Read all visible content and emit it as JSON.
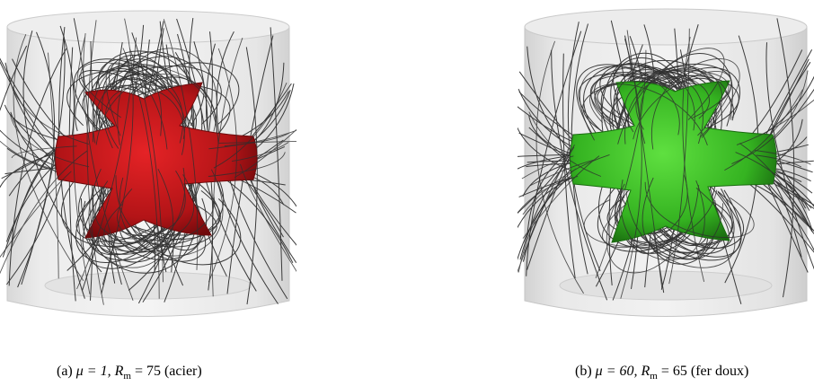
{
  "figures": [
    {
      "id": "a",
      "label": "(a)",
      "mu": "μ = 1,",
      "rm": "R",
      "rm_sub": "m",
      "rm_value": "= 75",
      "note": "(acier)",
      "blob_color": "#c8191c",
      "blob_dark": "#7a0b0d"
    },
    {
      "id": "b",
      "label": "(b)",
      "mu": "μ = 60,",
      "rm": "R",
      "rm_sub": "m",
      "rm_value": "= 65",
      "note": "(fer doux)",
      "blob_color": "#3fc428",
      "blob_dark": "#1d7a12"
    }
  ]
}
